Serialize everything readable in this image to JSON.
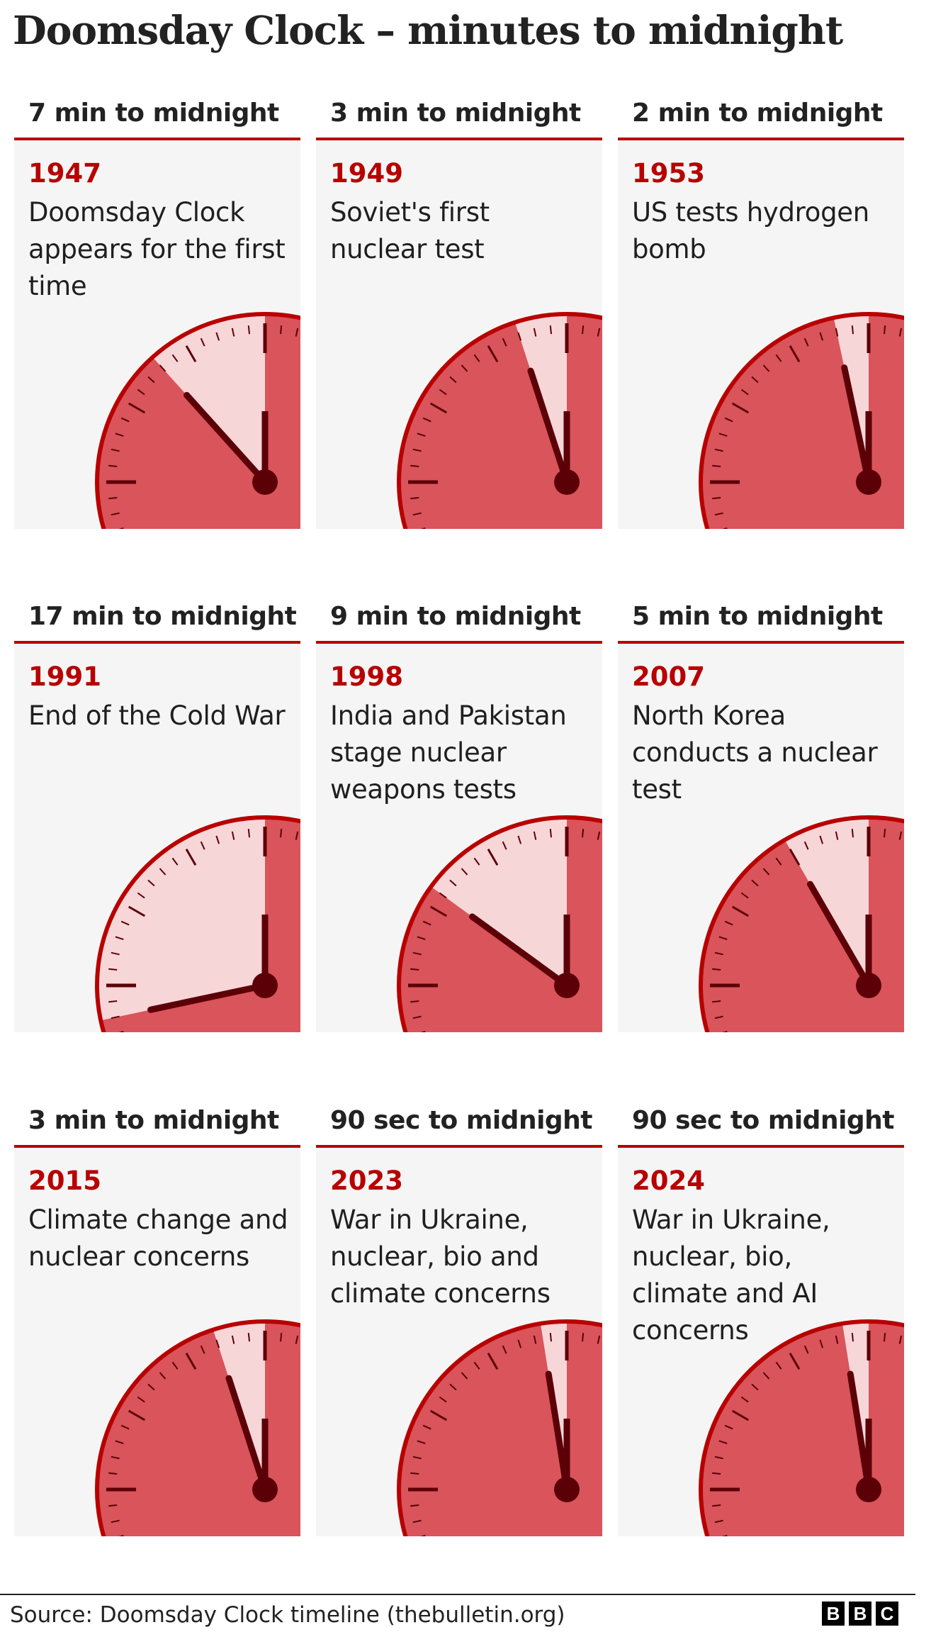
{
  "title": "Doomsday Clock – minutes to midnight",
  "colors": {
    "accent": "#b80000",
    "dial": "#d9545b",
    "wedge": "#f7d6d8",
    "hand": "#5c0007",
    "card": "#f5f5f5"
  },
  "panels": [
    {
      "label": "7 min to midnight",
      "year": "1947",
      "description": "Doomsday Clock appears for the first time",
      "minutes": 7
    },
    {
      "label": "3 min to midnight",
      "year": "1949",
      "description": "Soviet's first nuclear test",
      "minutes": 3
    },
    {
      "label": "2 min to midnight",
      "year": "1953",
      "description": "US tests hydrogen bomb",
      "minutes": 2
    },
    {
      "label": "17 min to midnight",
      "year": "1991",
      "description": "End of the Cold War",
      "minutes": 17
    },
    {
      "label": "9 min to midnight",
      "year": "1998",
      "description": "India and Pakistan stage nuclear weapons tests",
      "minutes": 9
    },
    {
      "label": "5 min to midnight",
      "year": "2007",
      "description": "North Korea conducts a nuclear test",
      "minutes": 5
    },
    {
      "label": "3 min to midnight",
      "year": "2015",
      "description": "Climate change and nuclear concerns",
      "minutes": 3
    },
    {
      "label": "90 sec to midnight",
      "year": "2023",
      "description": "War in Ukraine, nuclear, bio and climate concerns",
      "minutes": 1.5
    },
    {
      "label": "90 sec to midnight",
      "year": "2024",
      "description": "War in Ukraine, nuclear, bio, climate and AI concerns",
      "minutes": 1.5
    }
  ],
  "footer": {
    "source": "Source: Doomsday Clock timeline (thebulletin.org)",
    "logo": [
      "B",
      "B",
      "C"
    ]
  }
}
